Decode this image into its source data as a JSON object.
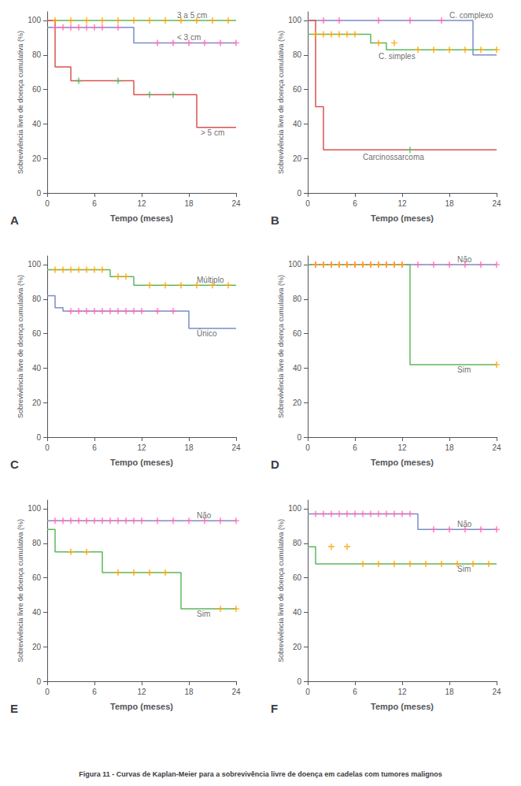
{
  "title": "Figura 11 - Curvas de Kaplan-Meier para a sobrevivência livre de doença em cadelas com tumores malignos",
  "chart_data": [
    {
      "type": "line",
      "title": "A",
      "xlabel": "Tempo (meses)",
      "ylabel": "Sobrevivência livre de doença cumulativa (%)",
      "xlim": [
        0,
        24
      ],
      "ylim": [
        0,
        105
      ],
      "xticks": [
        0,
        6,
        12,
        18,
        24
      ],
      "yticks": [
        0,
        20,
        40,
        60,
        80,
        100
      ],
      "grid": false,
      "series": [
        {
          "type": "line",
          "color": "#5CB85C",
          "x": [
            0,
            24
          ],
          "values": [
            100,
            100
          ]
        },
        {
          "type": "scatter",
          "marker": "plus",
          "color": "#FFA500",
          "x": [
            1,
            3,
            5,
            7,
            9,
            11,
            13,
            15,
            17,
            19,
            21,
            23
          ],
          "values": [
            100,
            100,
            100,
            100,
            100,
            100,
            100,
            100,
            100,
            100,
            100,
            100
          ]
        },
        {
          "type": "line",
          "color": "#7B8DC8",
          "x": [
            0,
            11,
            11,
            24
          ],
          "values": [
            96,
            96,
            87,
            87
          ]
        },
        {
          "type": "scatter",
          "marker": "plus",
          "color": "#FF69B4",
          "x": [
            1,
            2,
            3,
            4,
            5,
            6,
            7,
            9,
            14,
            16,
            18,
            20,
            22,
            24
          ],
          "values": [
            96,
            96,
            96,
            96,
            96,
            96,
            96,
            96,
            87,
            87,
            87,
            87,
            87,
            87
          ]
        },
        {
          "type": "line",
          "color": "#D9534F",
          "x": [
            0,
            1,
            1,
            3,
            3,
            11,
            11,
            19,
            19,
            24
          ],
          "values": [
            100,
            100,
            73,
            73,
            65,
            65,
            57,
            57,
            38,
            38
          ]
        },
        {
          "type": "scatter",
          "marker": "plus",
          "color": "#5CB85C",
          "x": [
            4,
            9,
            13,
            16
          ],
          "values": [
            65,
            65,
            57,
            57
          ]
        }
      ],
      "annotations": [
        {
          "text": "3 a 5 cm",
          "x": 16.5,
          "y": 103,
          "color": "#444444"
        },
        {
          "text": "< 3 cm",
          "x": 16.5,
          "y": 90,
          "color": "#444444"
        },
        {
          "text": "> 5 cm",
          "x": 19.5,
          "y": 35,
          "color": "#444444"
        }
      ]
    },
    {
      "type": "line",
      "title": "B",
      "xlabel": "Tempo (meses)",
      "ylabel": "Sobrevivência livre de doença cumulativa (%)",
      "xlim": [
        0,
        24
      ],
      "ylim": [
        0,
        105
      ],
      "xticks": [
        0,
        6,
        12,
        18,
        24
      ],
      "yticks": [
        0,
        20,
        40,
        60,
        80,
        100
      ],
      "grid": false,
      "series": [
        {
          "type": "line",
          "color": "#7B8DC8",
          "x": [
            0,
            21,
            21,
            24
          ],
          "values": [
            100,
            100,
            80,
            80
          ]
        },
        {
          "type": "scatter",
          "marker": "plus",
          "color": "#FF69B4",
          "x": [
            2,
            4,
            9,
            13,
            17
          ],
          "values": [
            100,
            100,
            100,
            100,
            100
          ]
        },
        {
          "type": "line",
          "color": "#5CB85C",
          "x": [
            0,
            8,
            8,
            10,
            10,
            12,
            12,
            21,
            21,
            24
          ],
          "values": [
            92,
            92,
            87,
            87,
            83,
            83,
            83,
            83,
            83,
            83
          ]
        },
        {
          "type": "scatter",
          "marker": "plus",
          "color": "#FFA500",
          "x": [
            1,
            2,
            3,
            4,
            5,
            6,
            9,
            11,
            14,
            16,
            18,
            20,
            22,
            24
          ],
          "values": [
            92,
            92,
            92,
            92,
            92,
            92,
            87,
            87,
            83,
            83,
            83,
            83,
            83,
            83
          ]
        },
        {
          "type": "line",
          "color": "#D9534F",
          "x": [
            0,
            1,
            1,
            2,
            2,
            12,
            12,
            24
          ],
          "values": [
            100,
            100,
            50,
            50,
            25,
            25,
            25,
            25
          ]
        },
        {
          "type": "scatter",
          "marker": "plus",
          "color": "#5CB85C",
          "x": [
            13
          ],
          "values": [
            25
          ]
        }
      ],
      "annotations": [
        {
          "text": "C. complexo",
          "x": 18,
          "y": 103,
          "color": "#444444"
        },
        {
          "text": "C. simples",
          "x": 9,
          "y": 79,
          "color": "#444444"
        },
        {
          "text": "Carcinossarcoma",
          "x": 7,
          "y": 21,
          "color": "#444444"
        }
      ]
    },
    {
      "type": "line",
      "title": "C",
      "xlabel": "Tempo (meses)",
      "ylabel": "Sobrevivência livre de doença cumulativa (%)",
      "xlim": [
        0,
        24
      ],
      "ylim": [
        0,
        105
      ],
      "xticks": [
        0,
        6,
        12,
        18,
        24
      ],
      "yticks": [
        0,
        20,
        40,
        60,
        80,
        100
      ],
      "grid": false,
      "series": [
        {
          "type": "line",
          "color": "#5CB85C",
          "x": [
            0,
            8,
            8,
            11,
            11,
            12,
            12,
            24
          ],
          "values": [
            97,
            97,
            93,
            93,
            88,
            88,
            88,
            88
          ]
        },
        {
          "type": "scatter",
          "marker": "plus",
          "color": "#FFA500",
          "x": [
            1,
            2,
            3,
            4,
            5,
            6,
            7,
            9,
            10,
            13,
            15,
            17,
            19,
            21,
            23
          ],
          "values": [
            97,
            97,
            97,
            97,
            97,
            97,
            97,
            93,
            93,
            88,
            88,
            88,
            88,
            88,
            88
          ]
        },
        {
          "type": "line",
          "color": "#7B8DC8",
          "x": [
            0,
            1,
            1,
            2,
            2,
            18,
            18,
            24
          ],
          "values": [
            82,
            82,
            75,
            75,
            73,
            73,
            63,
            63
          ]
        },
        {
          "type": "scatter",
          "marker": "plus",
          "color": "#FF69B4",
          "x": [
            3,
            4,
            5,
            6,
            7,
            8,
            9,
            10,
            11,
            12,
            14,
            16
          ],
          "values": [
            73,
            73,
            73,
            73,
            73,
            73,
            73,
            73,
            73,
            73,
            73,
            73
          ]
        }
      ],
      "annotations": [
        {
          "text": "Múltiplo",
          "x": 19,
          "y": 91,
          "color": "#444444"
        },
        {
          "text": "Único",
          "x": 19,
          "y": 60,
          "color": "#444444"
        }
      ]
    },
    {
      "type": "line",
      "title": "D",
      "xlabel": "Tempo (meses)",
      "ylabel": "Sobrevivência livre de doença cumulativa (%)",
      "xlim": [
        0,
        24
      ],
      "ylim": [
        0,
        105
      ],
      "xticks": [
        0,
        6,
        12,
        18,
        24
      ],
      "yticks": [
        0,
        20,
        40,
        60,
        80,
        100
      ],
      "grid": false,
      "series": [
        {
          "type": "line",
          "color": "#7B8DC8",
          "x": [
            0,
            24
          ],
          "values": [
            100,
            100
          ]
        },
        {
          "type": "scatter",
          "marker": "plus",
          "color": "#FF69B4",
          "x": [
            1,
            2,
            3,
            4,
            5,
            6,
            7,
            8,
            9,
            10,
            11,
            12,
            14,
            16,
            18,
            20,
            22,
            24
          ],
          "values": [
            100,
            100,
            100,
            100,
            100,
            100,
            100,
            100,
            100,
            100,
            100,
            100,
            100,
            100,
            100,
            100,
            100,
            100
          ]
        },
        {
          "type": "line",
          "color": "#5CB85C",
          "x": [
            0,
            13,
            13,
            24
          ],
          "values": [
            100,
            100,
            42,
            42
          ]
        },
        {
          "type": "scatter",
          "marker": "plus",
          "color": "#FFA500",
          "x": [
            1,
            2,
            3,
            4,
            5,
            6,
            7,
            8,
            9,
            10,
            11,
            12,
            24
          ],
          "values": [
            100,
            100,
            100,
            100,
            100,
            100,
            100,
            100,
            100,
            100,
            100,
            100,
            42
          ]
        }
      ],
      "annotations": [
        {
          "text": "Não",
          "x": 19,
          "y": 103,
          "color": "#444444"
        },
        {
          "text": "Sim",
          "x": 19,
          "y": 39,
          "color": "#444444"
        }
      ]
    },
    {
      "type": "line",
      "title": "E",
      "xlabel": "Tempo (meses)",
      "ylabel": "Sobrevivência livre de doença cumulativa (%)",
      "xlim": [
        0,
        24
      ],
      "ylim": [
        0,
        105
      ],
      "xticks": [
        0,
        6,
        12,
        18,
        24
      ],
      "yticks": [
        0,
        20,
        40,
        60,
        80,
        100
      ],
      "grid": false,
      "series": [
        {
          "type": "line",
          "color": "#7B8DC8",
          "x": [
            0,
            24
          ],
          "values": [
            93,
            93
          ]
        },
        {
          "type": "scatter",
          "marker": "plus",
          "color": "#FF69B4",
          "x": [
            1,
            2,
            3,
            4,
            5,
            6,
            7,
            8,
            9,
            10,
            11,
            12,
            14,
            16,
            18,
            20,
            22,
            24
          ],
          "values": [
            93,
            93,
            93,
            93,
            93,
            93,
            93,
            93,
            93,
            93,
            93,
            93,
            93,
            93,
            93,
            93,
            93,
            93
          ]
        },
        {
          "type": "line",
          "color": "#5CB85C",
          "x": [
            0,
            1,
            1,
            7,
            7,
            17,
            17,
            24
          ],
          "values": [
            88,
            88,
            75,
            75,
            63,
            63,
            42,
            42
          ]
        },
        {
          "type": "scatter",
          "marker": "plus",
          "color": "#FFA500",
          "x": [
            3,
            5,
            9,
            11,
            13,
            15,
            22,
            24
          ],
          "values": [
            75,
            75,
            63,
            63,
            63,
            63,
            42,
            42
          ]
        }
      ],
      "annotations": [
        {
          "text": "Não",
          "x": 19,
          "y": 96,
          "color": "#444444"
        },
        {
          "text": "Sim",
          "x": 19,
          "y": 39,
          "color": "#444444"
        }
      ]
    },
    {
      "type": "line",
      "title": "F",
      "xlabel": "Tempo (meses)",
      "ylabel": "Sobrevivência livre de doença cumulativa (%)",
      "xlim": [
        0,
        24
      ],
      "ylim": [
        0,
        105
      ],
      "xticks": [
        0,
        6,
        12,
        18,
        24
      ],
      "yticks": [
        0,
        20,
        40,
        60,
        80,
        100
      ],
      "grid": false,
      "series": [
        {
          "type": "line",
          "color": "#7B8DC8",
          "x": [
            0,
            14,
            14,
            24
          ],
          "values": [
            97,
            97,
            88,
            88
          ]
        },
        {
          "type": "scatter",
          "marker": "plus",
          "color": "#FF69B4",
          "x": [
            1,
            2,
            3,
            4,
            5,
            6,
            7,
            8,
            9,
            10,
            11,
            12,
            13,
            16,
            18,
            20,
            22,
            24
          ],
          "values": [
            97,
            97,
            97,
            97,
            97,
            97,
            97,
            97,
            97,
            97,
            97,
            97,
            97,
            88,
            88,
            88,
            88,
            88
          ]
        },
        {
          "type": "line",
          "color": "#5CB85C",
          "x": [
            0,
            1,
            1,
            24
          ],
          "values": [
            78,
            78,
            68,
            68
          ]
        },
        {
          "type": "scatter",
          "marker": "plus",
          "color": "#FFA500",
          "x": [
            3,
            5,
            7,
            9,
            11,
            13,
            15,
            17,
            19,
            21,
            23
          ],
          "values": [
            78,
            78,
            68,
            68,
            68,
            68,
            68,
            68,
            68,
            68,
            68
          ]
        }
      ],
      "annotations": [
        {
          "text": "Não",
          "x": 19,
          "y": 91,
          "color": "#444444"
        },
        {
          "text": "Sim",
          "x": 19,
          "y": 65,
          "color": "#444444"
        }
      ]
    }
  ]
}
